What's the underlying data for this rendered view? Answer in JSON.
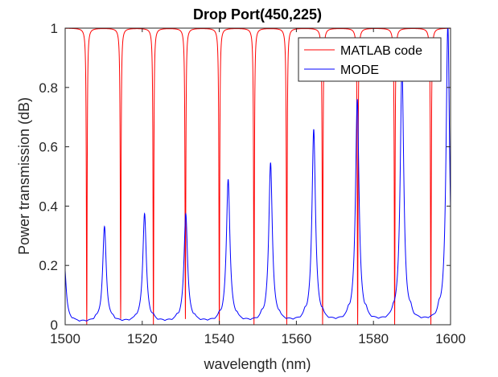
{
  "chart_data": {
    "type": "line",
    "title": "Drop Port(450,225)",
    "xlabel": "wavelength (nm)",
    "ylabel": "Power transmission (dB)",
    "xlim": [
      1500,
      1600
    ],
    "ylim": [
      0,
      1
    ],
    "xticks": [
      1500,
      1520,
      1540,
      1560,
      1580,
      1600
    ],
    "yticks": [
      0,
      0.2,
      0.4,
      0.6,
      0.8,
      1
    ],
    "xtick_labels": [
      "1500",
      "1520",
      "1540",
      "1560",
      "1580",
      "1600"
    ],
    "ytick_labels": [
      "0",
      "0.2",
      "0.4",
      "0.6",
      "0.8",
      "1"
    ],
    "grid": false,
    "legend_position": "top-right",
    "series": [
      {
        "name": "MATLAB code",
        "color": "#ff0000",
        "baseline": 1.0,
        "dips": [
          {
            "center": 1505.6,
            "depth": 1.0
          },
          {
            "center": 1514.4,
            "depth": 0.98
          },
          {
            "center": 1522.9,
            "depth": 1.0
          },
          {
            "center": 1531.2,
            "depth": 0.98
          },
          {
            "center": 1540.0,
            "depth": 1.0
          },
          {
            "center": 1549.0,
            "depth": 1.0
          },
          {
            "center": 1557.5,
            "depth": 1.0
          },
          {
            "center": 1566.8,
            "depth": 1.0
          },
          {
            "center": 1575.9,
            "depth": 1.0
          },
          {
            "center": 1585.5,
            "depth": 1.0
          },
          {
            "center": 1594.9,
            "depth": 1.0
          }
        ]
      },
      {
        "name": "MODE",
        "color": "#0000ff",
        "baseline": 0.005,
        "peaks": [
          {
            "center": 1499.8,
            "height": 0.2
          },
          {
            "center": 1510.2,
            "height": 0.32
          },
          {
            "center": 1520.6,
            "height": 0.365
          },
          {
            "center": 1531.3,
            "height": 0.365
          },
          {
            "center": 1542.3,
            "height": 0.48
          },
          {
            "center": 1553.3,
            "height": 0.535
          },
          {
            "center": 1564.5,
            "height": 0.648
          },
          {
            "center": 1575.8,
            "height": 0.75
          },
          {
            "center": 1587.4,
            "height": 0.86
          },
          {
            "center": 1599.3,
            "height": 1.0
          }
        ]
      }
    ]
  }
}
